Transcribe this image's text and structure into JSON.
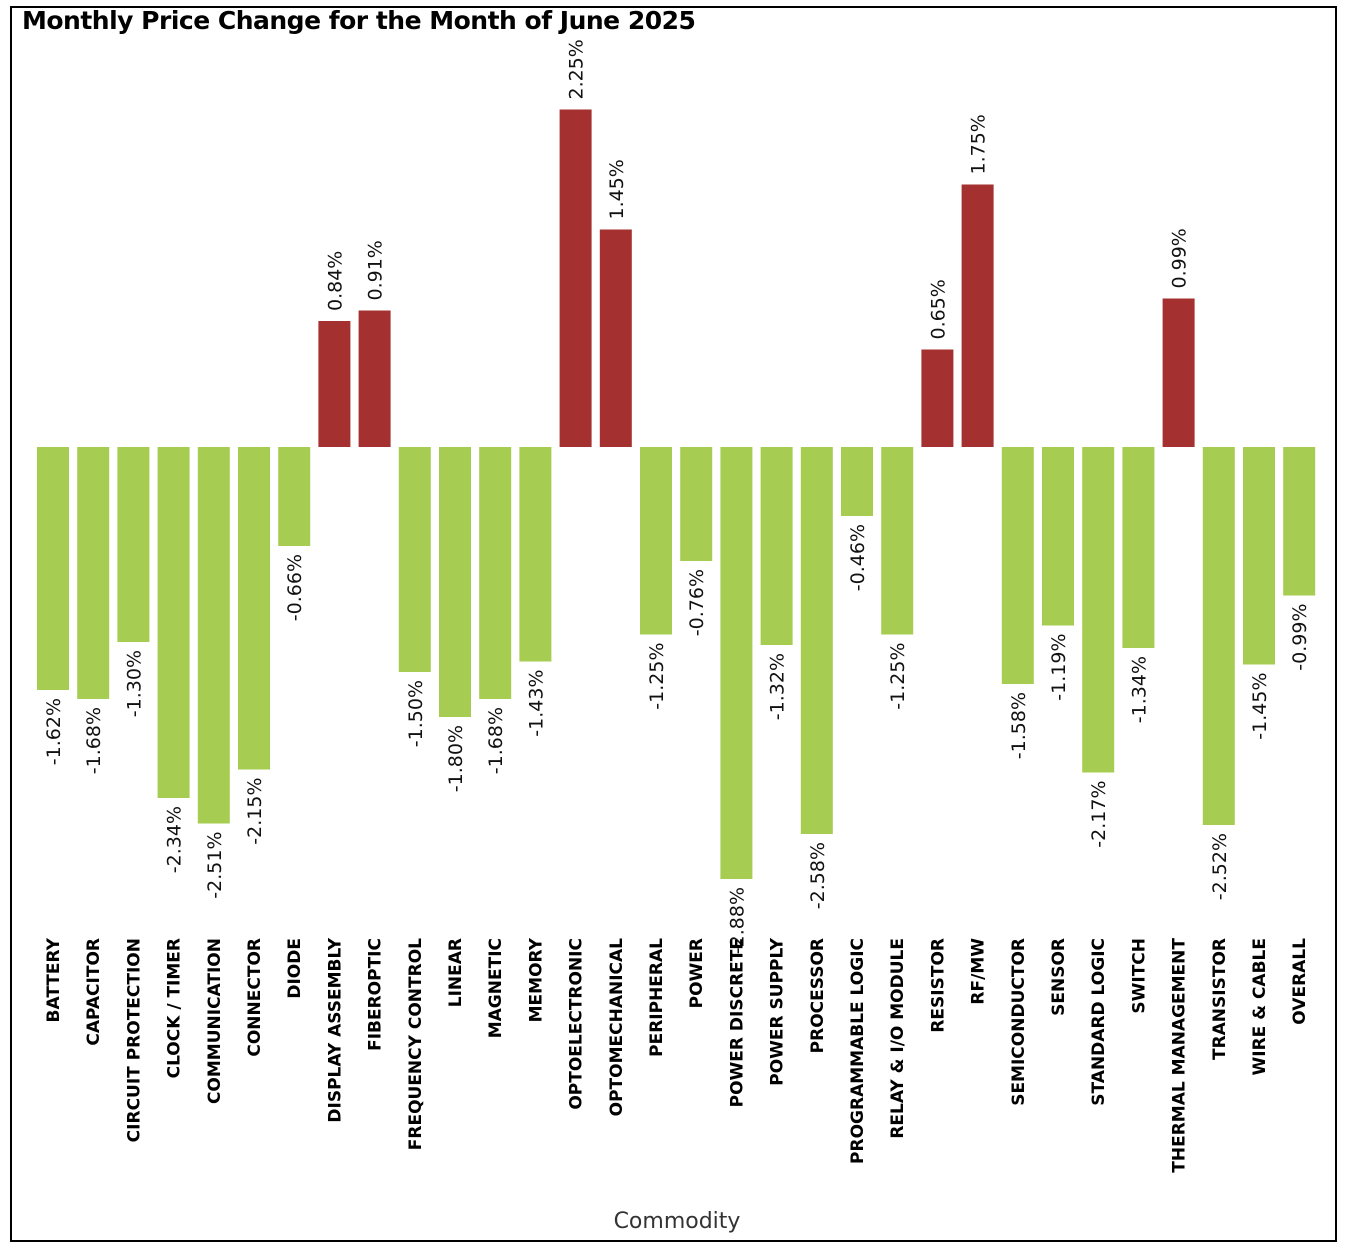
{
  "chart_data": {
    "type": "bar",
    "title": "Monthly Price Change for the Month of June 2025",
    "xlabel": "Commodity",
    "ylabel": "",
    "value_suffix": "%",
    "categories": [
      "BATTERY",
      "CAPACITOR",
      "CIRCUIT PROTECTION",
      "CLOCK / TIMER",
      "COMMUNICATION",
      "CONNECTOR",
      "DIODE",
      "DISPLAY ASSEMBLY",
      "FIBEROPTIC",
      "FREQUENCY CONTROL",
      "LINEAR",
      "MAGNETIC",
      "MEMORY",
      "OPTOELECTRONIC",
      "OPTOMECHANICAL",
      "PERIPHERAL",
      "POWER",
      "POWER DISCRETE",
      "POWER SUPPLY",
      "PROCESSOR",
      "PROGRAMMABLE LOGIC",
      "RELAY & I/O MODULE",
      "RESISTOR",
      "RF/MW",
      "SEMICONDUCTOR",
      "SENSOR",
      "STANDARD LOGIC",
      "SWITCH",
      "THERMAL MANAGEMENT",
      "TRANSISTOR",
      "WIRE & CABLE",
      "OVERALL"
    ],
    "values": [
      -1.62,
      -1.68,
      -1.3,
      -2.34,
      -2.51,
      -2.15,
      -0.66,
      0.84,
      0.91,
      -1.5,
      -1.8,
      -1.68,
      -1.43,
      2.25,
      1.45,
      -1.25,
      -0.76,
      -2.88,
      -1.32,
      -2.58,
      -0.46,
      -1.25,
      0.65,
      1.75,
      -1.58,
      -1.19,
      -2.17,
      -1.34,
      0.99,
      -2.52,
      -1.45,
      -0.99
    ],
    "data_labels": [
      "-1.62%",
      "-1.68%",
      "-1.30%",
      "-2.34%",
      "-2.51%",
      "-2.15%",
      "-0.66%",
      "0.84%",
      "0.91%",
      "-1.50%",
      "-1.80%",
      "-1.68%",
      "-1.43%",
      "2.25%",
      "1.45%",
      "-1.25%",
      "-0.76%",
      "-2.88%",
      "-1.32%",
      "-2.58%",
      "-0.46%",
      "-1.25%",
      "0.65%",
      "1.75%",
      "-1.58%",
      "-1.19%",
      "-2.17%",
      "-1.34%",
      "0.99%",
      "-2.52%",
      "-1.45%",
      "-0.99%"
    ],
    "colors": {
      "positive": "#a4302f",
      "negative": "#a6cd52"
    },
    "grid": false,
    "legend": "none",
    "axes_visible": false
  }
}
